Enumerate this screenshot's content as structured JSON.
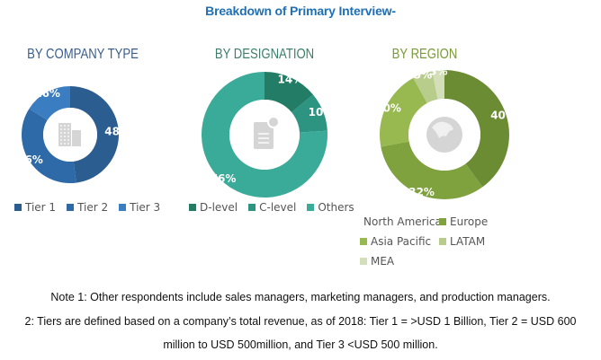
{
  "title": "Breakdown of Primary Interview-",
  "chart_data": [
    {
      "type": "pie",
      "variant": "donut",
      "title": "BY COMPANY TYPE",
      "title_color": "#3b5e8c",
      "center_icon": "building-icon",
      "categories": [
        "Tier 1",
        "Tier 2",
        "Tier 3"
      ],
      "values": [
        48,
        36,
        16
      ],
      "labels": [
        "48%",
        "36%",
        "16%"
      ],
      "colors": [
        "#2b5d91",
        "#2e6aa8",
        "#3a7dc0"
      ],
      "legend_position": "bottom"
    },
    {
      "type": "pie",
      "variant": "donut",
      "title": "BY DESIGNATION",
      "title_color": "#3d7f6b",
      "center_icon": "document-icon",
      "categories": [
        "D-level",
        "C-level",
        "Others"
      ],
      "values": [
        14,
        10,
        76
      ],
      "labels": [
        "14%",
        "10%",
        "76%"
      ],
      "colors": [
        "#237d66",
        "#2c9480",
        "#3aab98"
      ],
      "legend_position": "bottom"
    },
    {
      "type": "pie",
      "variant": "donut",
      "title": "BY REGION",
      "title_color": "#7a9a3a",
      "center_icon": "globe-icon",
      "categories": [
        "North America",
        "Europe",
        "Asia Pacific",
        "LATAM",
        "MEA"
      ],
      "values": [
        40,
        32,
        20,
        5,
        3
      ],
      "labels": [
        "40%",
        "32%",
        "20%",
        "5%",
        "3%"
      ],
      "colors": [
        "#6c8c34",
        "#7fa23f",
        "#97b94f",
        "#b8cc8c",
        "#d2dfb8"
      ],
      "legend_position": "bottom"
    }
  ],
  "notes": [
    "Note 1: Other respondents include sales managers, marketing managers, and production managers.",
    "2: Tiers are defined based on a company’s total revenue, as of 2018: Tier 1 = >USD 1 Billion, Tier 2 = USD 600",
    "million to USD 500million, and Tier 3 <USD 500 million."
  ]
}
